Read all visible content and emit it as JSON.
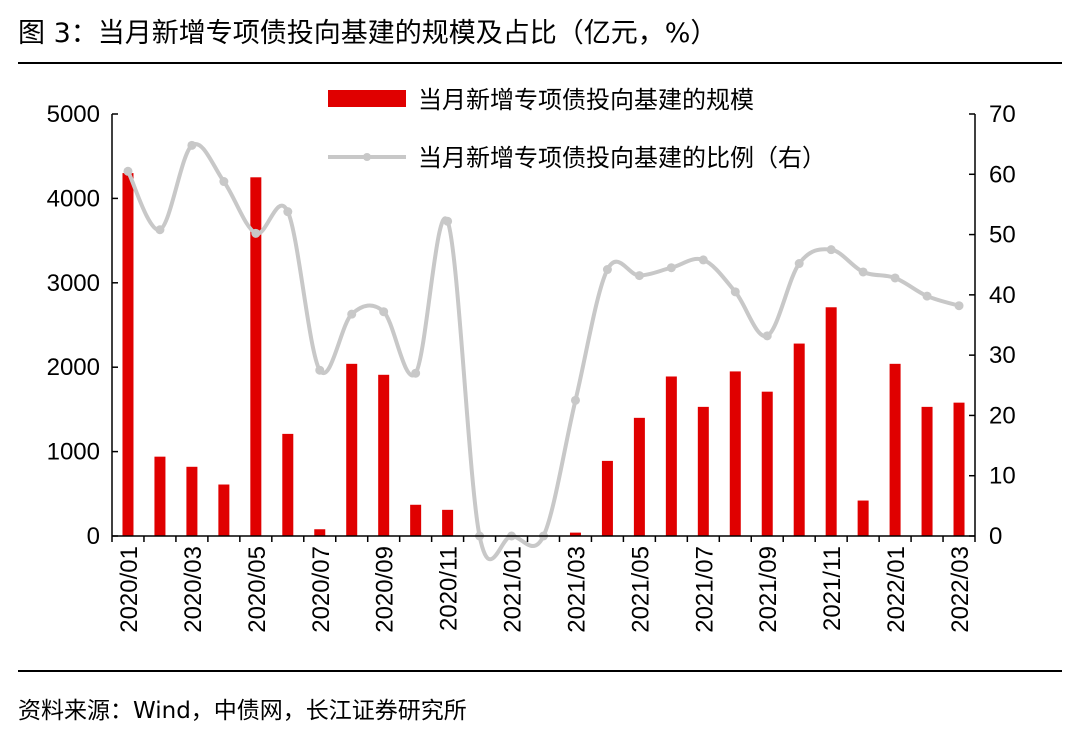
{
  "header": {
    "title": "图 3：当月新增专项债投向基建的规模及占比（亿元，%）"
  },
  "footer": {
    "source": "资料来源：Wind，中债网，长江证券研究所"
  },
  "chart_data": {
    "type": "bar",
    "categories": [
      "2020/01",
      "2020/02",
      "2020/03",
      "2020/04",
      "2020/05",
      "2020/06",
      "2020/07",
      "2020/08",
      "2020/09",
      "2020/10",
      "2020/11",
      "2020/12",
      "2021/01",
      "2021/02",
      "2021/03",
      "2021/04",
      "2021/05",
      "2021/06",
      "2021/07",
      "2021/08",
      "2021/09",
      "2021/10",
      "2021/11",
      "2021/12",
      "2022/01",
      "2022/02",
      "2022/03"
    ],
    "tick_labels": [
      "2020/01",
      "2020/03",
      "2020/05",
      "2020/07",
      "2020/09",
      "2020/11",
      "2021/01",
      "2021/03",
      "2021/05",
      "2021/07",
      "2021/09",
      "2021/11",
      "2022/01",
      "2022/03"
    ],
    "series": [
      {
        "name": "当月新增专项债投向基建的规模",
        "type": "bar",
        "axis": "left",
        "color": "#e00000",
        "values": [
          4300,
          940,
          820,
          610,
          4250,
          1210,
          80,
          2040,
          1910,
          370,
          310,
          0,
          0,
          0,
          40,
          890,
          1400,
          1890,
          1530,
          1950,
          1710,
          2280,
          2710,
          420,
          2040,
          1530,
          1580
        ]
      },
      {
        "name": "当月新增专项债投向基建的比例（右）",
        "type": "line",
        "axis": "right",
        "color": "#c8c8c8",
        "values": [
          60.5,
          50.8,
          64.8,
          58.8,
          50.2,
          53.8,
          27.5,
          36.8,
          37.2,
          27.0,
          52.2,
          0,
          0,
          0,
          22.5,
          44.2,
          43.2,
          44.5,
          45.8,
          40.5,
          33.2,
          45.2,
          47.5,
          43.8,
          42.8,
          39.8,
          38.2
        ]
      }
    ],
    "y_left": {
      "ticks": [
        0,
        1000,
        2000,
        3000,
        4000,
        5000
      ],
      "ylim": [
        0,
        5000
      ]
    },
    "y_right": {
      "ticks": [
        0,
        10,
        20,
        30,
        40,
        50,
        60,
        70
      ],
      "ylim": [
        0,
        70
      ]
    },
    "legend_position": "top-center",
    "grid": false
  }
}
